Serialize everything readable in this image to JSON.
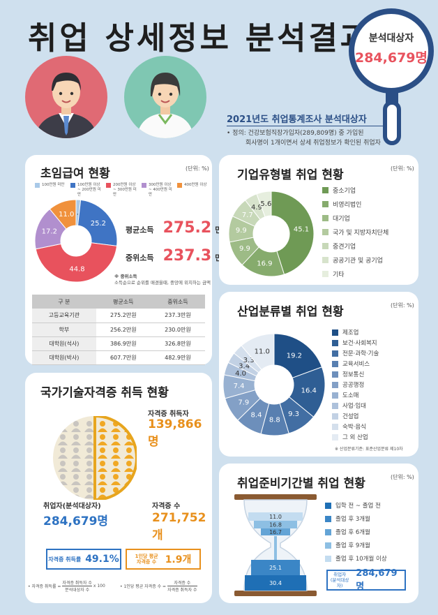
{
  "header": {
    "title": "취업 상세정보 분석결과",
    "lens_label": "분석대상자",
    "lens_value": "284,679명",
    "survey_title": "2021년도 취업통계조사 분석대상자",
    "definition_line1": "• 정의: 건강보험직장가입자(289,809명) 중 가입된",
    "definition_line2": "회사명이 1개이면서 상세 취업정보가 확인된 취업자"
  },
  "salary": {
    "title": "초임급여 현황",
    "unit": "(단위: %)",
    "legend": [
      {
        "label": "100만원 미만",
        "color": "#a9c9e8"
      },
      {
        "label": "100만원 이상 ~ 200만원 미만",
        "color": "#3f74c4"
      },
      {
        "label": "200만원 이상 ~ 300만원 미만",
        "color": "#e8525d"
      },
      {
        "label": "300만원 이상 ~ 400만원 미만",
        "color": "#b18fce"
      },
      {
        "label": "400만원 이상",
        "color": "#f0913c"
      }
    ],
    "chart_data": {
      "type": "pie",
      "categories": [
        "100만원 미만",
        "100만원 이상 ~ 200만원 미만",
        "200만원 이상 ~ 300만원 미만",
        "300만원 이상 ~ 400만원 미만",
        "400만원 이상"
      ],
      "values": [
        1.8,
        25.2,
        44.8,
        17.2,
        11.0
      ],
      "labels": [
        "1.8",
        "25.2",
        "44.8",
        "17.2",
        "11.0"
      ]
    },
    "avg_label": "평균소득",
    "avg_value": "275.2",
    "avg_unit": "만원",
    "median_label": "중위소득",
    "median_value": "237.3",
    "median_unit": "만원",
    "note_title": "※ 중위소득",
    "note_text": "소득순으로 순위를 매겼을때, 중앙에 위치하는 금액",
    "table": {
      "headers": [
        "구 분",
        "평균소득",
        "중위소득"
      ],
      "rows": [
        [
          "고등교육기관",
          "275.2만원",
          "237.3만원"
        ],
        [
          "학부",
          "256.2만원",
          "230.0만원"
        ],
        [
          "대학원(석사)",
          "386.9만원",
          "326.8만원"
        ],
        [
          "대학원(박사)",
          "607.7만원",
          "482.9만원"
        ]
      ]
    }
  },
  "company": {
    "title": "기업유형별 취업 현황",
    "unit": "(단위: %)",
    "legend": [
      {
        "label": "중소기업",
        "color": "#6f9a55"
      },
      {
        "label": "비영리법인",
        "color": "#86ab6d"
      },
      {
        "label": "대기업",
        "color": "#9dbb86"
      },
      {
        "label": "국가 및 지방자치단체",
        "color": "#b3ca9f"
      },
      {
        "label": "중견기업",
        "color": "#c7d8b8"
      },
      {
        "label": "공공기관 및 공기업",
        "color": "#d7e3cc"
      },
      {
        "label": "기타",
        "color": "#e6eede"
      }
    ],
    "chart_data": {
      "type": "pie",
      "categories": [
        "중소기업",
        "비영리법인",
        "대기업",
        "국가 및 지방자치단체",
        "중견기업",
        "공공기관 및 공기업",
        "기타"
      ],
      "values": [
        45.1,
        16.9,
        9.9,
        9.9,
        7.7,
        4.9,
        5.6
      ],
      "labels": [
        "45.1",
        "16.9",
        "9.9",
        "9.9",
        "7.7",
        "4.9",
        "5.6"
      ]
    }
  },
  "industry": {
    "title": "산업분류별 취업 현황",
    "unit": "(단위: %)",
    "legend": [
      {
        "label": "제조업",
        "color": "#1f4f86"
      },
      {
        "label": "보건·사회복지",
        "color": "#2f5e94"
      },
      {
        "label": "전문·과학·기술",
        "color": "#426ea3"
      },
      {
        "label": "교육서비스",
        "color": "#587fb0"
      },
      {
        "label": "정보통신",
        "color": "#6d8fbb"
      },
      {
        "label": "공공행정",
        "color": "#83a0c6"
      },
      {
        "label": "도소매",
        "color": "#98b1d1"
      },
      {
        "label": "사업·임대",
        "color": "#adc1db"
      },
      {
        "label": "건설업",
        "color": "#c2d1e4"
      },
      {
        "label": "숙박·음식",
        "color": "#d4dfec"
      },
      {
        "label": "그 외 산업",
        "color": "#e4ebf3"
      }
    ],
    "chart_data": {
      "type": "pie",
      "categories": [
        "제조업",
        "보건·사회복지",
        "전문·과학·기술",
        "교육서비스",
        "정보통신",
        "공공행정",
        "도소매",
        "사업·임대",
        "건설업",
        "숙박·음식",
        "그 외 산업"
      ],
      "values": [
        19.2,
        16.4,
        9.3,
        8.8,
        8.4,
        7.9,
        7.4,
        4.0,
        3.4,
        3.3,
        11.0
      ],
      "labels": [
        "19.2",
        "16.4",
        "9.3",
        "8.8",
        "8.4",
        "7.9",
        "7.4",
        "4.0",
        "3.4",
        "3.3",
        "11.0"
      ]
    },
    "source": "※ 산업분류기준: 표준산업분류 제10차"
  },
  "license": {
    "title": "국가기술자격증 취득 현황",
    "holders_label": "자격증 취득자",
    "holders_value": "139,866명",
    "employed_label": "취업자(분석대상자)",
    "employed_value": "284,679명",
    "count_label": "자격증 수",
    "count_value": "271,752개",
    "rate_label": "자격증 취득률",
    "rate_value": "49.1%",
    "per_label_1": "1인당 평균",
    "per_label_2": "자격증 수",
    "per_value": "1.9개",
    "formula1_left": "• 자격증 취득률 =",
    "formula1_num": "자격증 취득자 수",
    "formula1_den": "분석대상자 수",
    "formula1_mult": "x 100",
    "formula2_left": "• 1인당 평균 자격증 수 =",
    "formula2_num": "자격증 수",
    "formula2_den": "자격증 취득자 수"
  },
  "prep": {
    "title": "취업준비기간별 취업 현황",
    "unit": "(단위: %)",
    "legend": [
      {
        "label": "입학 전 ~ 졸업 전",
        "color": "#1f6fb5"
      },
      {
        "label": "졸업 후 3개월",
        "color": "#3b86c6"
      },
      {
        "label": "졸업 후 6개월",
        "color": "#63a4d6"
      },
      {
        "label": "졸업 후 9개월",
        "color": "#8dbfe3"
      },
      {
        "label": "졸업 후 10개월 이상",
        "color": "#c3dcf0"
      }
    ],
    "chart_data": {
      "type": "bar",
      "categories": [
        "졸업 후 10개월 이상",
        "졸업 후 9개월",
        "졸업 후 6개월",
        "졸업 후 3개월",
        "입학 전 ~ 졸업 전"
      ],
      "values": [
        11.0,
        16.8,
        16.7,
        25.1,
        30.4
      ],
      "labels": [
        "11.0",
        "16.8",
        "16.7",
        "25.1",
        "30.4"
      ]
    },
    "total_label_1": "취업자",
    "total_label_2": "(분석대상자)",
    "total_value": "284,679명"
  }
}
